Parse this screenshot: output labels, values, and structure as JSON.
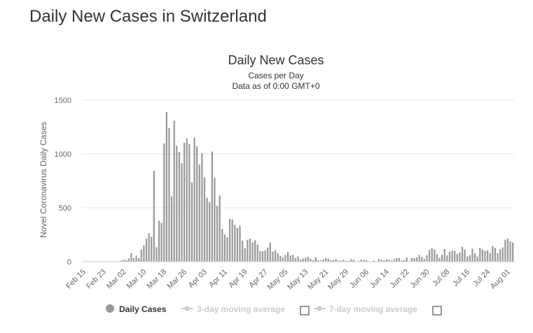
{
  "page": {
    "title": "Daily New Cases in Switzerland"
  },
  "chart_data": {
    "type": "bar",
    "title": "Daily New Cases",
    "subtitle": "Cases per Day",
    "subtitle2": "Data as of 0:00 GMT+0",
    "ylabel": "Novel Coronavirus Daily Cases",
    "xlabel": "",
    "ylim": [
      0,
      1500
    ],
    "yticks": [
      0,
      500,
      1000,
      1500
    ],
    "grid": true,
    "x_start": "Feb 15",
    "x_end": "Aug 01",
    "xticks": [
      "Feb 15",
      "Feb 23",
      "Mar 02",
      "Mar 10",
      "Mar 18",
      "Mar 26",
      "Apr 03",
      "Apr 11",
      "Apr 19",
      "Apr 27",
      "May 05",
      "May 13",
      "May 21",
      "May 29",
      "Jun 06",
      "Jun 14",
      "Jun 22",
      "Jun 30",
      "Jul 08",
      "Jul 16",
      "Jul 24",
      "Aug 01"
    ],
    "bar_color": "#999999",
    "series": [
      {
        "name": "Daily Cases",
        "values": [
          0,
          0,
          0,
          0,
          0,
          0,
          0,
          0,
          0,
          0,
          0,
          1,
          0,
          2,
          0,
          8,
          18,
          13,
          29,
          79,
          32,
          55,
          33,
          112,
          153,
          213,
          264,
          230,
          843,
          134,
          380,
          362,
          1097,
          1390,
          1241,
          606,
          1309,
          1077,
          1018,
          914,
          1104,
          1146,
          1090,
          736,
          1151,
          1070,
          902,
          1006,
          782,
          594,
          552,
          1022,
          779,
          519,
          612,
          303,
          252,
          228,
          398,
          392,
          342,
          313,
          333,
          195,
          124,
          203,
          214,
          177,
          197,
          158,
          99,
          96,
          104,
          132,
          177,
          94,
          106,
          80,
          53,
          39,
          62,
          89,
          57,
          64,
          33,
          49,
          20,
          30,
          39,
          45,
          27,
          15,
          40,
          11,
          11,
          22,
          34,
          28,
          14,
          16,
          23,
          10,
          10,
          18,
          6,
          6,
          21,
          18,
          3,
          7,
          18,
          14,
          14,
          0,
          0,
          10,
          0,
          25,
          19,
          11,
          22,
          18,
          11,
          23,
          34,
          34,
          9,
          13,
          38,
          0,
          35,
          33,
          39,
          62,
          44,
          25,
          59,
          109,
          126,
          113,
          69,
          37,
          64,
          117,
          58,
          90,
          102,
          100,
          72,
          86,
          137,
          111,
          47,
          59,
          120,
          77,
          47,
          129,
          113,
          99,
          105,
          80,
          144,
          127,
          79,
          115,
          132,
          202,
          215,
          189,
          178
        ]
      }
    ],
    "legend": {
      "placement": "bottom",
      "items": [
        "Daily Cases",
        "3-day moving average",
        "7-day moving average"
      ]
    },
    "colors": {
      "active_marker": "#999999",
      "inactive": "#cccccc"
    }
  }
}
